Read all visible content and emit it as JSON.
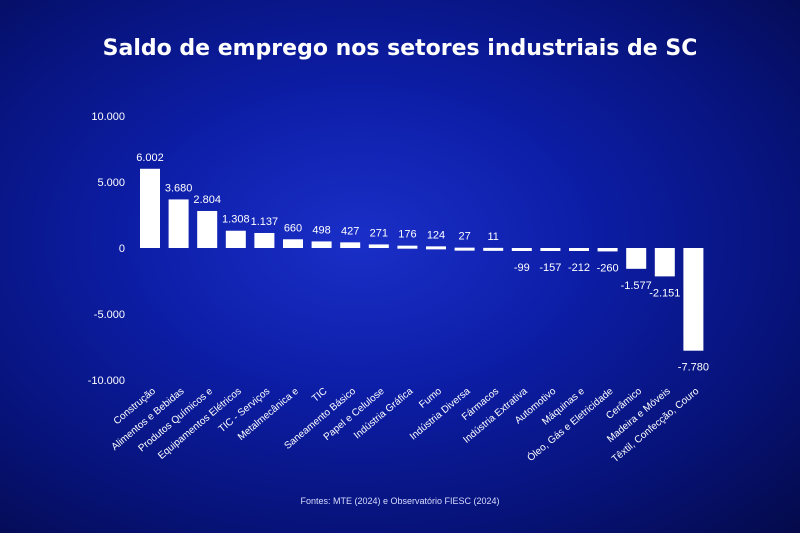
{
  "chart_data": {
    "type": "bar",
    "title": "Saldo de emprego nos setores industriais de SC",
    "source": "Fontes: MTE (2024) e Observatório FIESC (2024)",
    "categories": [
      "Construção",
      "Alimentos e Bebidas",
      "Produtos Químicos e",
      "Equipamentos Elétricos",
      "TIC - Serviços",
      "Metalmecânica e",
      "TIC",
      "Saneamento Básico",
      "Papel e Celulose",
      "Indústria Gráfica",
      "Fumo",
      "Indústria Diversa",
      "Fármacos",
      "Indústria Extrativa",
      "Automotivo",
      "Máquinas e",
      "Óleo, Gás e Eletricidade",
      "Cerâmico",
      "Madeira e Móveis",
      "Têxtil, Confecção, Couro"
    ],
    "values": [
      6002,
      3680,
      2804,
      1308,
      1137,
      660,
      498,
      427,
      271,
      176,
      124,
      27,
      11,
      -99,
      -157,
      -212,
      -260,
      -1577,
      -2151,
      -7780
    ],
    "data_labels": [
      "6.002",
      "3.680",
      "2.804",
      "1.308",
      "1.137",
      "660",
      "498",
      "427",
      "271",
      "176",
      "124",
      "27",
      "11",
      "-99",
      "-157",
      "-212",
      "-260",
      "-1.577",
      "-2.151",
      "-7.780"
    ],
    "ylim": [
      -10000,
      10000
    ],
    "yticks": [
      10000,
      5000,
      0,
      -5000,
      -10000
    ],
    "ytick_labels": [
      "10.000",
      "5.000",
      "0",
      "-5.000",
      "-10.000"
    ],
    "grid": false,
    "bar_color": "#ffffff"
  }
}
